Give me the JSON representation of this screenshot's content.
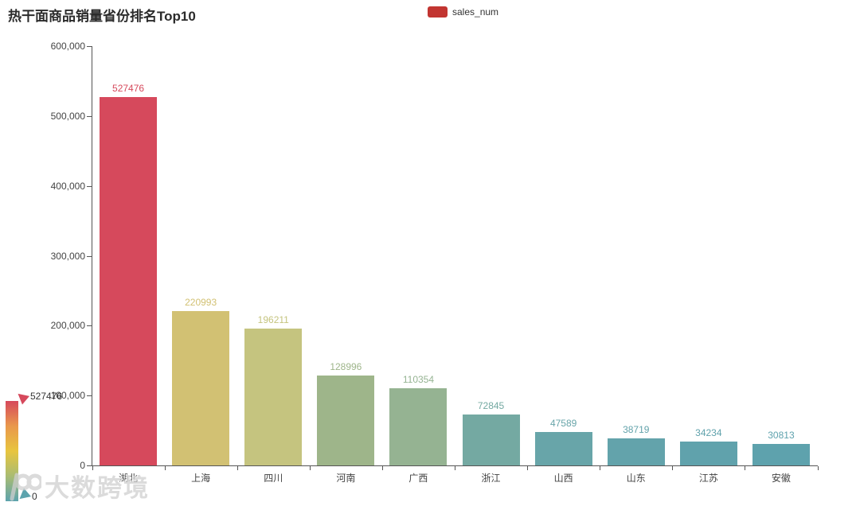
{
  "title": "热干面商品销量省份排名Top10",
  "legend": {
    "label": "sales_num",
    "swatch_color": "#c23531"
  },
  "chart_data": {
    "type": "bar",
    "title": "热干面商品销量省份排名Top10",
    "categories": [
      "湖北",
      "上海",
      "四川",
      "河南",
      "广西",
      "浙江",
      "山西",
      "山东",
      "江苏",
      "安徽"
    ],
    "series": [
      {
        "name": "sales_num",
        "values": [
          527476,
          220993,
          196211,
          128996,
          110354,
          72845,
          47589,
          38719,
          34234,
          30813
        ]
      }
    ],
    "bar_colors": [
      "#d6495c",
      "#d2c173",
      "#c5c47f",
      "#9eb58a",
      "#95b392",
      "#74a9a2",
      "#68a5a9",
      "#63a3ab",
      "#60a2ac",
      "#5ea2ad"
    ],
    "value_labels_shown": true,
    "ylim": [
      0,
      600000
    ],
    "y_tick_labels": [
      "0",
      "100,000",
      "200,000",
      "300,000",
      "400,000",
      "500,000",
      "600,000"
    ],
    "grid": false,
    "legend_position": "top-center"
  },
  "visualmap": {
    "max_label": "527476",
    "min_label": "0",
    "min_value": 0,
    "max_value": 527476,
    "gradient_colors": [
      "#d6495c",
      "#e9984c",
      "#e8c53f",
      "#a9bc72",
      "#5ca3ad"
    ],
    "max_handle_color": "#d6495c",
    "min_handle_color": "#5ca3ad"
  },
  "watermark": {
    "text": "大数跨境",
    "logo": "infinity-logo"
  }
}
